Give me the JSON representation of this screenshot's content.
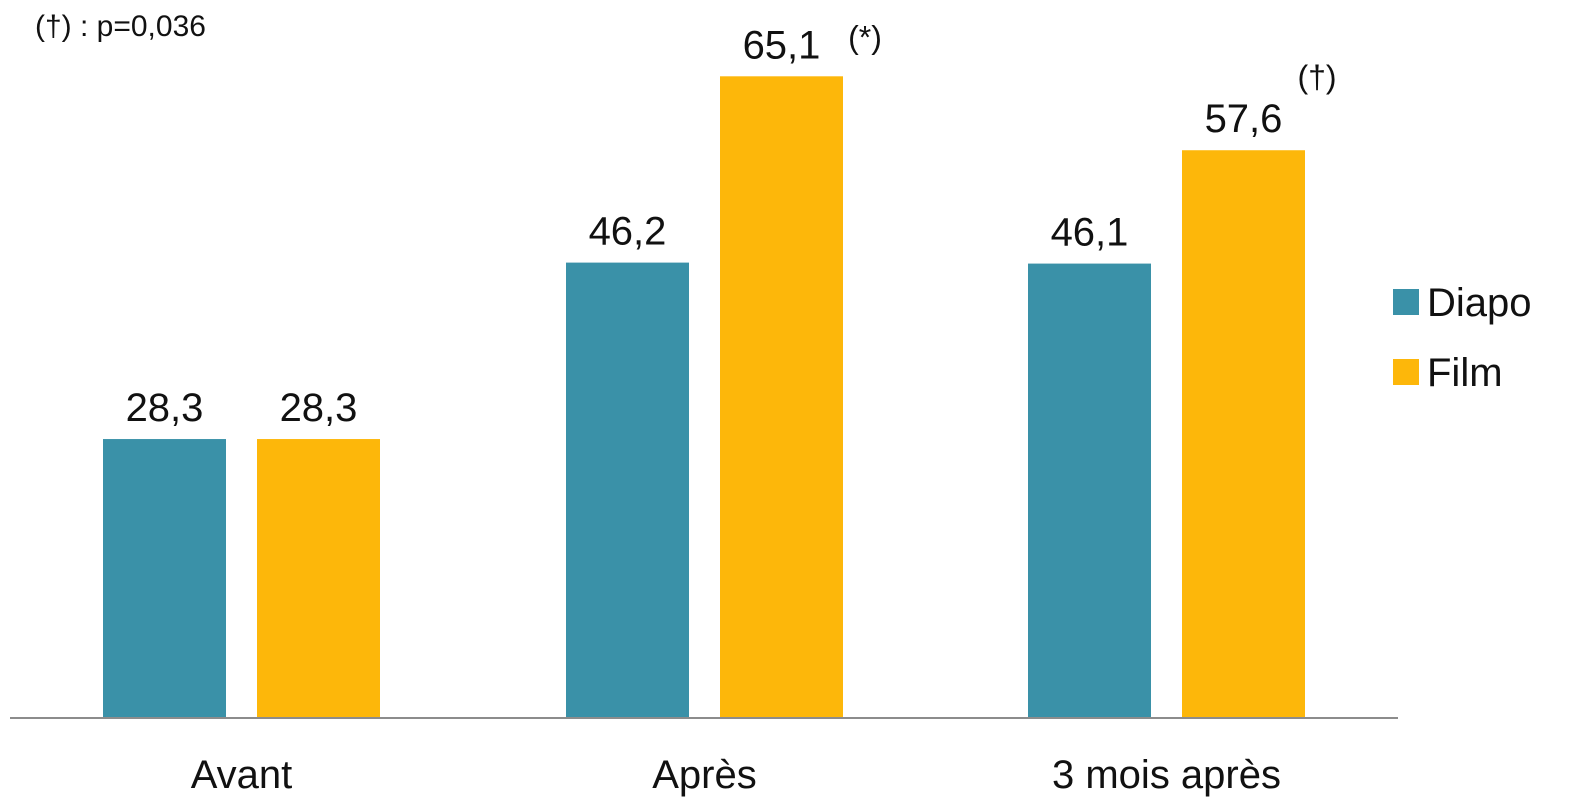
{
  "footnote": "(†) : p=0,036",
  "colors": {
    "Diapo": "#3a91a8",
    "Film": "#fdb70a",
    "axis": "#8c8c8c"
  },
  "chart_data": {
    "type": "bar",
    "title": "",
    "xlabel": "",
    "ylabel": "",
    "ylim": [
      0,
      70
    ],
    "grid": false,
    "legend_position": "right",
    "categories": [
      "Avant",
      "Après",
      "3 mois après"
    ],
    "series": [
      {
        "name": "Diapo",
        "values": [
          28.3,
          46.2,
          46.1
        ],
        "labels": [
          "28,3",
          "46,2",
          "46,1"
        ],
        "markers": [
          "",
          "",
          ""
        ]
      },
      {
        "name": "Film",
        "values": [
          28.3,
          65.1,
          57.6
        ],
        "labels": [
          "28,3",
          "65,1",
          "57,6"
        ],
        "markers": [
          "",
          "(*)",
          "(†)"
        ]
      }
    ]
  }
}
